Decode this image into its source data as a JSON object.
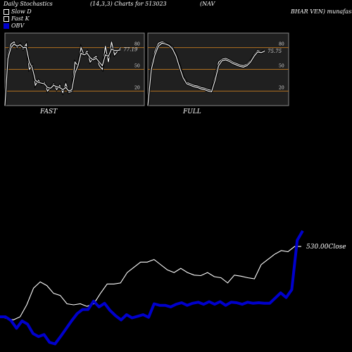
{
  "header": {
    "left": "Daily Stochastics",
    "mid": "(14,3,3) Charts for 513023",
    "right_top": "(NAV",
    "right_name": "BHAR VEN) munafasutra"
  },
  "legend": [
    {
      "label": "Slow  D",
      "color": "#000000"
    },
    {
      "label": "Fast K",
      "color": "#000000"
    },
    {
      "label": "OBV",
      "color": "#0000cc"
    }
  ],
  "panels": [
    {
      "label": "FAST",
      "last_value": "77.19",
      "levels": [
        "80",
        "50",
        "20"
      ]
    },
    {
      "label": "FULL",
      "last_value": "75.75",
      "levels": [
        "80",
        "50",
        "20"
      ]
    }
  ],
  "close_label": "530.00Close",
  "colors": {
    "background": "#000000",
    "panel": "#202020",
    "grid": "#b07020",
    "line": "#ffffff",
    "obv": "#0000cc"
  },
  "chart_data": [
    {
      "type": "line",
      "title": "FAST",
      "ylim": [
        0,
        100
      ],
      "gridlines": [
        80,
        50,
        20
      ],
      "series": [
        {
          "name": "Fast K",
          "values": [
            0,
            70,
            85,
            88,
            80,
            85,
            78,
            85,
            50,
            55,
            28,
            35,
            30,
            32,
            20,
            25,
            30,
            22,
            28,
            18,
            30,
            18,
            20,
            60,
            55,
            80,
            70,
            75,
            60,
            65,
            68,
            55,
            50,
            82,
            60,
            88,
            70,
            75,
            80
          ]
        },
        {
          "name": "Slow  D",
          "values": [
            0,
            65,
            80,
            85,
            82,
            84,
            80,
            80,
            60,
            52,
            35,
            32,
            31,
            30,
            25,
            24,
            28,
            26,
            25,
            22,
            25,
            20,
            22,
            45,
            55,
            72,
            70,
            72,
            66,
            63,
            65,
            60,
            55,
            70,
            68,
            78,
            76,
            76,
            77
          ]
        }
      ]
    },
    {
      "type": "line",
      "title": "FULL",
      "ylim": [
        0,
        100
      ],
      "gridlines": [
        80,
        50,
        20
      ],
      "series": [
        {
          "name": "Fast K",
          "values": [
            0,
            55,
            75,
            86,
            88,
            86,
            84,
            80,
            70,
            55,
            40,
            32,
            30,
            28,
            27,
            25,
            24,
            22,
            21,
            40,
            60,
            64,
            65,
            63,
            60,
            58,
            56,
            55,
            57,
            62,
            70,
            76,
            74,
            76
          ]
        },
        {
          "name": "Slow  D",
          "values": [
            0,
            50,
            70,
            82,
            86,
            85,
            83,
            78,
            68,
            52,
            38,
            30,
            28,
            26,
            25,
            23,
            22,
            20,
            19,
            35,
            55,
            62,
            63,
            61,
            58,
            56,
            54,
            53,
            55,
            60,
            68,
            74,
            73,
            75
          ]
        }
      ]
    },
    {
      "type": "line",
      "title": "",
      "series": [
        {
          "name": "Close",
          "values": [
            395,
            392,
            389,
            395,
            418,
            450,
            462,
            455,
            440,
            436,
            420,
            418,
            420,
            415,
            420,
            440,
            458,
            458,
            460,
            480,
            490,
            500,
            500,
            505,
            495,
            485,
            480,
            488,
            480,
            475,
            474,
            480,
            472,
            470,
            460,
            475,
            473,
            470,
            468,
            495,
            505,
            515,
            522,
            520,
            530,
            530
          ]
        },
        {
          "name": "OBV",
          "values": [
            395,
            395,
            388,
            373,
            387,
            381,
            363,
            357,
            361,
            346,
            343,
            357,
            372,
            387,
            401,
            409,
            409,
            425,
            414,
            421,
            407,
            397,
            389,
            399,
            393,
            396,
            399,
            394,
            420,
            417,
            417,
            414,
            419,
            422,
            417,
            421,
            423,
            419,
            424,
            419,
            424,
            417,
            423,
            422,
            419,
            423,
            421,
            422,
            421,
            421,
            431,
            441,
            432,
            447,
            542,
            560
          ]
        }
      ]
    }
  ]
}
